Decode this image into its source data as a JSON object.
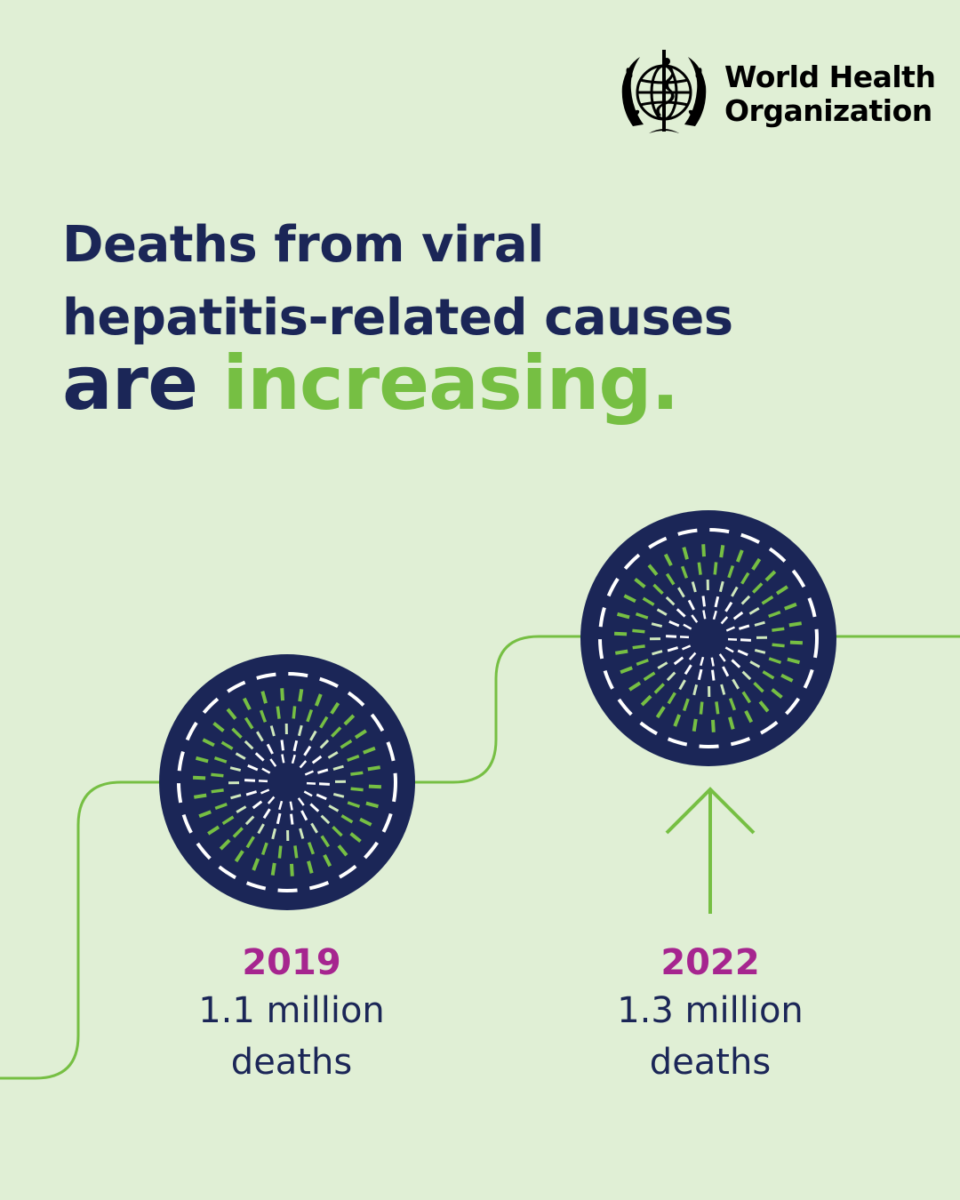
{
  "logo": {
    "line1": "World Health",
    "line2": "Organization",
    "emblem_icon": "who-emblem-icon"
  },
  "headline": {
    "line1": "Deaths from viral",
    "line2": "hepatitis-related causes",
    "line3_prefix": "are ",
    "line3_accent": "increasing."
  },
  "points": [
    {
      "year": "2019",
      "value_line1": "1.1 million",
      "value_line2": "deaths"
    },
    {
      "year": "2022",
      "value_line1": "1.3 million",
      "value_line2": "deaths"
    }
  ],
  "colors": {
    "background": "#e0efd5",
    "navy": "#1b2657",
    "green": "#76bf43",
    "magenta": "#a6258f"
  }
}
